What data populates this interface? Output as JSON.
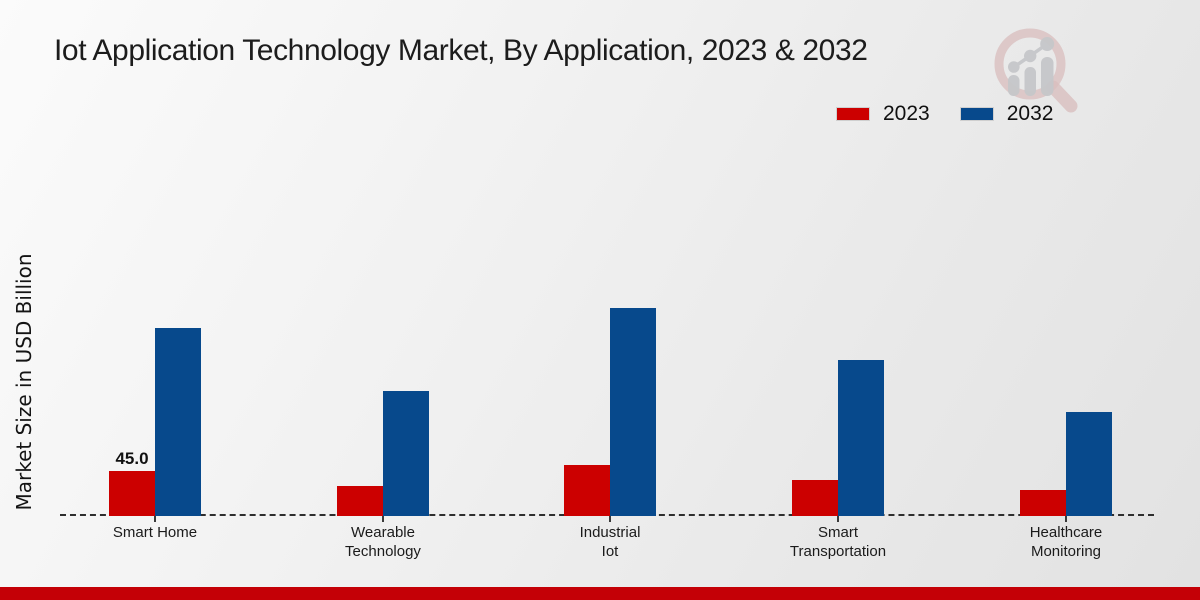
{
  "header": {
    "title": "Iot Application Technology Market, By Application, 2023 & 2032"
  },
  "colors": {
    "series_2023": "#cc0000",
    "series_2032": "#07498c",
    "bottom_strip": "#c40006",
    "watermark_ring": "#dabfbf",
    "watermark_gray": "#c6c7ca"
  },
  "chart_data": {
    "type": "bar",
    "title": "Iot Application Technology Market, By Application, 2023 & 2032",
    "xlabel": "",
    "ylabel": "Market Size in USD Billion",
    "categories": [
      "Smart Home",
      "Wearable Technology",
      "Industrial Iot",
      "Smart Transportation",
      "Healthcare Monitoring"
    ],
    "category_lines": [
      [
        "Smart Home"
      ],
      [
        "Wearable",
        "Technology"
      ],
      [
        "Industrial",
        "Iot"
      ],
      [
        "Smart",
        "Transportation"
      ],
      [
        "Healthcare",
        "Monitoring"
      ]
    ],
    "series": [
      {
        "name": "2023",
        "color": "#cc0000",
        "values": [
          45.0,
          30,
          51,
          36,
          26
        ]
      },
      {
        "name": "2032",
        "color": "#07498c",
        "values": [
          188,
          125,
          208,
          156,
          104
        ]
      }
    ],
    "bar_labels": [
      {
        "series_index": 0,
        "category_index": 0,
        "text": "45.0"
      }
    ],
    "ylim": [
      0,
      230
    ],
    "grid": false,
    "y_ticks_visible": false,
    "baseline_style": "dashed",
    "legend_position": "top-right",
    "legend_entries": [
      "2023",
      "2032"
    ]
  }
}
